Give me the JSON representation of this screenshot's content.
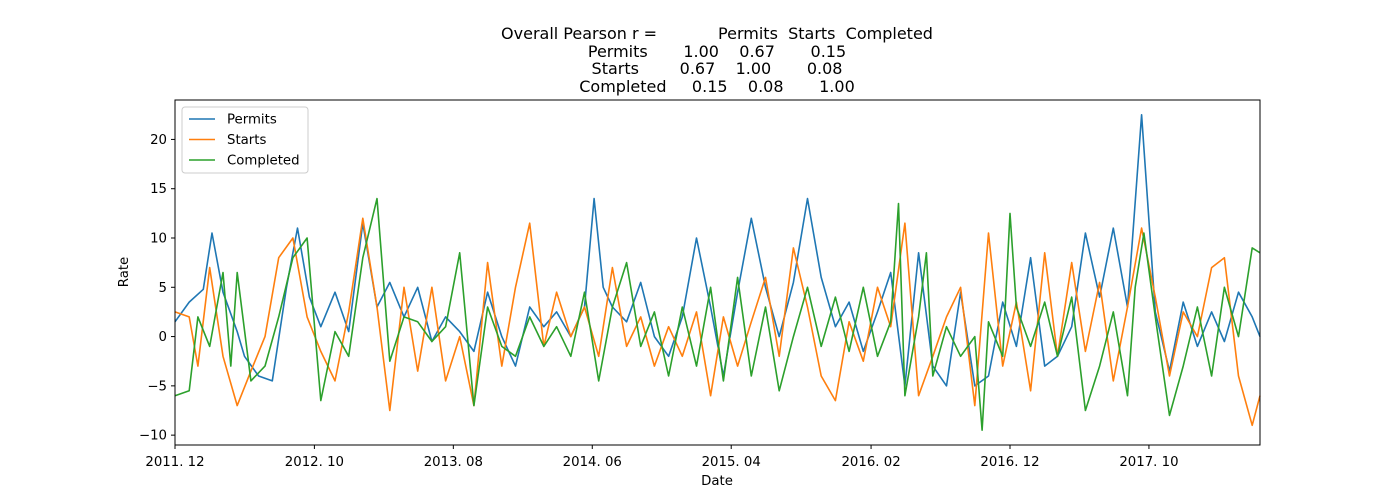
{
  "chart_data": {
    "type": "line",
    "title_lines": [
      "Overall Pearson r =            Permits  Starts  Completed",
      "Permits       1.00    0.67       0.15",
      "Starts        0.67    1.00       0.08",
      "Completed     0.15    0.08       1.00"
    ],
    "xlabel": "Date",
    "ylabel": "Rate",
    "x_range": [
      "2011-12",
      "2018-06"
    ],
    "ylim": [
      -11,
      24
    ],
    "x_ticks": [
      {
        "date": "2011-12",
        "label": "2011. 12"
      },
      {
        "date": "2012-10",
        "label": "2012. 10"
      },
      {
        "date": "2013-08",
        "label": "2013. 08"
      },
      {
        "date": "2014-06",
        "label": "2014. 06"
      },
      {
        "date": "2015-04",
        "label": "2015. 04"
      },
      {
        "date": "2016-02",
        "label": "2016. 02"
      },
      {
        "date": "2016-12",
        "label": "2016. 12"
      },
      {
        "date": "2017-10",
        "label": "2017. 10"
      }
    ],
    "y_ticks": [
      -10,
      -5,
      0,
      5,
      10,
      15,
      20
    ],
    "grid": false,
    "legend_position": "top-left",
    "series": [
      {
        "name": "Permits",
        "color": "#1f77b4",
        "points": [
          [
            "2011-12-01",
            1.5
          ],
          [
            "2012-01-01",
            3.5
          ],
          [
            "2012-02-01",
            4.8
          ],
          [
            "2012-02-20",
            10.5
          ],
          [
            "2012-03-15",
            4.5
          ],
          [
            "2012-04-15",
            0.5
          ],
          [
            "2012-05-01",
            -2.0
          ],
          [
            "2012-06-01",
            -4.0
          ],
          [
            "2012-07-01",
            -4.5
          ],
          [
            "2012-08-01",
            5.0
          ],
          [
            "2012-08-25",
            11.0
          ],
          [
            "2012-09-20",
            4.0
          ],
          [
            "2012-10-15",
            1.0
          ],
          [
            "2012-11-15",
            4.5
          ],
          [
            "2012-12-15",
            0.5
          ],
          [
            "2013-01-15",
            11.5
          ],
          [
            "2013-02-15",
            3.0
          ],
          [
            "2013-03-15",
            5.5
          ],
          [
            "2013-04-15",
            2.0
          ],
          [
            "2013-05-15",
            5.0
          ],
          [
            "2013-06-15",
            -0.5
          ],
          [
            "2013-07-15",
            2.0
          ],
          [
            "2013-08-15",
            0.5
          ],
          [
            "2013-09-15",
            -1.5
          ],
          [
            "2013-10-15",
            4.5
          ],
          [
            "2013-11-15",
            0.0
          ],
          [
            "2013-12-15",
            -3.0
          ],
          [
            "2014-01-15",
            3.0
          ],
          [
            "2014-02-15",
            1.0
          ],
          [
            "2014-03-15",
            2.5
          ],
          [
            "2014-04-15",
            0.0
          ],
          [
            "2014-05-15",
            3.0
          ],
          [
            "2014-06-05",
            14.0
          ],
          [
            "2014-06-25",
            5.0
          ],
          [
            "2014-07-15",
            3.0
          ],
          [
            "2014-08-15",
            1.5
          ],
          [
            "2014-09-15",
            5.5
          ],
          [
            "2014-10-15",
            0.0
          ],
          [
            "2014-11-15",
            -2.0
          ],
          [
            "2014-12-15",
            2.0
          ],
          [
            "2015-01-15",
            10.0
          ],
          [
            "2015-02-15",
            3.0
          ],
          [
            "2015-03-15",
            -4.0
          ],
          [
            "2015-04-15",
            4.5
          ],
          [
            "2015-05-15",
            12.0
          ],
          [
            "2015-06-15",
            5.0
          ],
          [
            "2015-07-15",
            0.0
          ],
          [
            "2015-08-15",
            5.5
          ],
          [
            "2015-09-15",
            14.0
          ],
          [
            "2015-10-15",
            6.0
          ],
          [
            "2015-11-15",
            1.0
          ],
          [
            "2015-12-15",
            3.5
          ],
          [
            "2016-01-15",
            -1.5
          ],
          [
            "2016-02-15",
            2.5
          ],
          [
            "2016-03-15",
            6.5
          ],
          [
            "2016-04-15",
            -5.0
          ],
          [
            "2016-05-15",
            8.5
          ],
          [
            "2016-06-15",
            -3.0
          ],
          [
            "2016-07-15",
            -5.0
          ],
          [
            "2016-08-15",
            4.5
          ],
          [
            "2016-09-15",
            -5.0
          ],
          [
            "2016-10-15",
            -4.0
          ],
          [
            "2016-11-15",
            3.5
          ],
          [
            "2016-12-15",
            -1.0
          ],
          [
            "2017-01-15",
            8.0
          ],
          [
            "2017-02-15",
            -3.0
          ],
          [
            "2017-03-15",
            -2.0
          ],
          [
            "2017-04-15",
            1.0
          ],
          [
            "2017-05-15",
            10.5
          ],
          [
            "2017-06-15",
            4.0
          ],
          [
            "2017-07-15",
            11.0
          ],
          [
            "2017-08-15",
            3.0
          ],
          [
            "2017-09-15",
            22.5
          ],
          [
            "2017-10-15",
            2.5
          ],
          [
            "2017-11-15",
            -3.5
          ],
          [
            "2017-12-15",
            3.5
          ],
          [
            "2018-01-15",
            -1.0
          ],
          [
            "2018-02-15",
            2.5
          ],
          [
            "2018-03-15",
            -0.5
          ],
          [
            "2018-04-15",
            4.5
          ],
          [
            "2018-05-15",
            2.0
          ],
          [
            "2018-06-01",
            0.0
          ]
        ]
      },
      {
        "name": "Starts",
        "color": "#ff7f0e",
        "points": [
          [
            "2011-12-01",
            2.5
          ],
          [
            "2012-01-01",
            2.0
          ],
          [
            "2012-01-20",
            -3.0
          ],
          [
            "2012-02-15",
            7.0
          ],
          [
            "2012-03-15",
            -2.0
          ],
          [
            "2012-04-15",
            -7.0
          ],
          [
            "2012-05-15",
            -3.5
          ],
          [
            "2012-06-15",
            0.0
          ],
          [
            "2012-07-15",
            8.0
          ],
          [
            "2012-08-15",
            10.0
          ],
          [
            "2012-09-15",
            2.0
          ],
          [
            "2012-10-15",
            -1.5
          ],
          [
            "2012-11-15",
            -4.5
          ],
          [
            "2012-12-15",
            2.5
          ],
          [
            "2013-01-15",
            12.0
          ],
          [
            "2013-02-15",
            3.0
          ],
          [
            "2013-03-15",
            -7.5
          ],
          [
            "2013-04-15",
            5.0
          ],
          [
            "2013-05-15",
            -3.5
          ],
          [
            "2013-06-15",
            5.0
          ],
          [
            "2013-07-15",
            -4.5
          ],
          [
            "2013-08-15",
            0.0
          ],
          [
            "2013-09-15",
            -7.0
          ],
          [
            "2013-10-15",
            7.5
          ],
          [
            "2013-11-15",
            -3.0
          ],
          [
            "2013-12-15",
            5.0
          ],
          [
            "2014-01-15",
            11.5
          ],
          [
            "2014-02-15",
            -1.0
          ],
          [
            "2014-03-15",
            4.5
          ],
          [
            "2014-04-15",
            0.0
          ],
          [
            "2014-05-15",
            3.0
          ],
          [
            "2014-06-15",
            -2.0
          ],
          [
            "2014-07-15",
            7.0
          ],
          [
            "2014-08-15",
            -1.0
          ],
          [
            "2014-09-15",
            2.0
          ],
          [
            "2014-10-15",
            -3.0
          ],
          [
            "2014-11-15",
            1.0
          ],
          [
            "2014-12-15",
            -2.0
          ],
          [
            "2015-01-15",
            2.5
          ],
          [
            "2015-02-15",
            -6.0
          ],
          [
            "2015-03-15",
            2.0
          ],
          [
            "2015-04-15",
            -3.0
          ],
          [
            "2015-05-15",
            1.5
          ],
          [
            "2015-06-15",
            6.0
          ],
          [
            "2015-07-15",
            -2.0
          ],
          [
            "2015-08-15",
            9.0
          ],
          [
            "2015-09-15",
            3.0
          ],
          [
            "2015-10-15",
            -4.0
          ],
          [
            "2015-11-15",
            -6.5
          ],
          [
            "2015-12-15",
            1.5
          ],
          [
            "2016-01-15",
            -2.5
          ],
          [
            "2016-02-15",
            5.0
          ],
          [
            "2016-03-15",
            1.0
          ],
          [
            "2016-04-15",
            11.5
          ],
          [
            "2016-05-15",
            -6.0
          ],
          [
            "2016-06-15",
            -2.0
          ],
          [
            "2016-07-15",
            2.0
          ],
          [
            "2016-08-15",
            5.0
          ],
          [
            "2016-09-15",
            -7.0
          ],
          [
            "2016-10-15",
            10.5
          ],
          [
            "2016-11-15",
            -3.0
          ],
          [
            "2016-12-15",
            3.5
          ],
          [
            "2017-01-15",
            -5.5
          ],
          [
            "2017-02-15",
            8.5
          ],
          [
            "2017-03-15",
            -2.0
          ],
          [
            "2017-04-15",
            7.5
          ],
          [
            "2017-05-15",
            -1.5
          ],
          [
            "2017-06-15",
            5.5
          ],
          [
            "2017-07-15",
            -4.5
          ],
          [
            "2017-08-15",
            3.0
          ],
          [
            "2017-09-15",
            11.0
          ],
          [
            "2017-10-15",
            4.0
          ],
          [
            "2017-11-15",
            -4.0
          ],
          [
            "2017-12-15",
            2.5
          ],
          [
            "2018-01-15",
            0.0
          ],
          [
            "2018-02-15",
            7.0
          ],
          [
            "2018-03-15",
            8.0
          ],
          [
            "2018-04-15",
            -4.0
          ],
          [
            "2018-05-15",
            -9.0
          ],
          [
            "2018-06-01",
            -6.0
          ]
        ]
      },
      {
        "name": "Completed",
        "color": "#2ca02c",
        "points": [
          [
            "2011-12-01",
            -6.0
          ],
          [
            "2012-01-01",
            -5.5
          ],
          [
            "2012-01-20",
            2.0
          ],
          [
            "2012-02-15",
            -1.0
          ],
          [
            "2012-03-15",
            6.5
          ],
          [
            "2012-04-01",
            -3.0
          ],
          [
            "2012-04-15",
            6.5
          ],
          [
            "2012-05-15",
            -4.5
          ],
          [
            "2012-06-15",
            -3.0
          ],
          [
            "2012-07-15",
            2.0
          ],
          [
            "2012-08-15",
            8.0
          ],
          [
            "2012-09-15",
            10.0
          ],
          [
            "2012-10-15",
            -6.5
          ],
          [
            "2012-11-15",
            0.5
          ],
          [
            "2012-12-15",
            -2.0
          ],
          [
            "2013-01-15",
            8.0
          ],
          [
            "2013-02-15",
            14.0
          ],
          [
            "2013-03-15",
            -2.5
          ],
          [
            "2013-04-15",
            2.0
          ],
          [
            "2013-05-15",
            1.5
          ],
          [
            "2013-06-15",
            -0.5
          ],
          [
            "2013-07-15",
            1.0
          ],
          [
            "2013-08-15",
            8.5
          ],
          [
            "2013-09-15",
            -7.0
          ],
          [
            "2013-10-15",
            3.0
          ],
          [
            "2013-11-15",
            -1.0
          ],
          [
            "2013-12-15",
            -2.0
          ],
          [
            "2014-01-15",
            2.0
          ],
          [
            "2014-02-15",
            -1.0
          ],
          [
            "2014-03-15",
            1.0
          ],
          [
            "2014-04-15",
            -2.0
          ],
          [
            "2014-05-15",
            4.5
          ],
          [
            "2014-06-15",
            -4.5
          ],
          [
            "2014-07-15",
            3.0
          ],
          [
            "2014-08-15",
            7.5
          ],
          [
            "2014-09-15",
            -1.0
          ],
          [
            "2014-10-15",
            2.5
          ],
          [
            "2014-11-15",
            -4.0
          ],
          [
            "2014-12-15",
            3.0
          ],
          [
            "2015-01-15",
            -3.0
          ],
          [
            "2015-02-15",
            5.0
          ],
          [
            "2015-03-15",
            -4.5
          ],
          [
            "2015-04-15",
            6.0
          ],
          [
            "2015-05-15",
            -4.0
          ],
          [
            "2015-06-15",
            3.0
          ],
          [
            "2015-07-15",
            -5.5
          ],
          [
            "2015-08-15",
            0.0
          ],
          [
            "2015-09-15",
            5.0
          ],
          [
            "2015-10-15",
            -1.0
          ],
          [
            "2015-11-15",
            4.0
          ],
          [
            "2015-12-15",
            -1.5
          ],
          [
            "2016-01-15",
            5.0
          ],
          [
            "2016-02-15",
            -2.0
          ],
          [
            "2016-03-15",
            1.5
          ],
          [
            "2016-04-01",
            13.5
          ],
          [
            "2016-04-15",
            -6.0
          ],
          [
            "2016-05-15",
            2.0
          ],
          [
            "2016-06-01",
            8.5
          ],
          [
            "2016-06-15",
            -4.0
          ],
          [
            "2016-07-15",
            1.0
          ],
          [
            "2016-08-15",
            -2.0
          ],
          [
            "2016-09-15",
            0.0
          ],
          [
            "2016-10-01",
            -9.5
          ],
          [
            "2016-10-15",
            1.5
          ],
          [
            "2016-11-15",
            -2.0
          ],
          [
            "2016-12-01",
            12.5
          ],
          [
            "2016-12-15",
            3.0
          ],
          [
            "2017-01-15",
            -1.0
          ],
          [
            "2017-02-15",
            3.5
          ],
          [
            "2017-03-15",
            -2.0
          ],
          [
            "2017-04-15",
            4.0
          ],
          [
            "2017-05-15",
            -7.5
          ],
          [
            "2017-06-15",
            -3.0
          ],
          [
            "2017-07-15",
            2.5
          ],
          [
            "2017-08-15",
            -6.0
          ],
          [
            "2017-09-01",
            5.0
          ],
          [
            "2017-09-20",
            10.5
          ],
          [
            "2017-10-15",
            2.0
          ],
          [
            "2017-11-15",
            -8.0
          ],
          [
            "2017-12-15",
            -3.0
          ],
          [
            "2018-01-15",
            3.0
          ],
          [
            "2018-02-15",
            -4.0
          ],
          [
            "2018-03-15",
            5.0
          ],
          [
            "2018-04-15",
            0.0
          ],
          [
            "2018-05-15",
            9.0
          ],
          [
            "2018-06-01",
            8.5
          ]
        ]
      }
    ]
  }
}
